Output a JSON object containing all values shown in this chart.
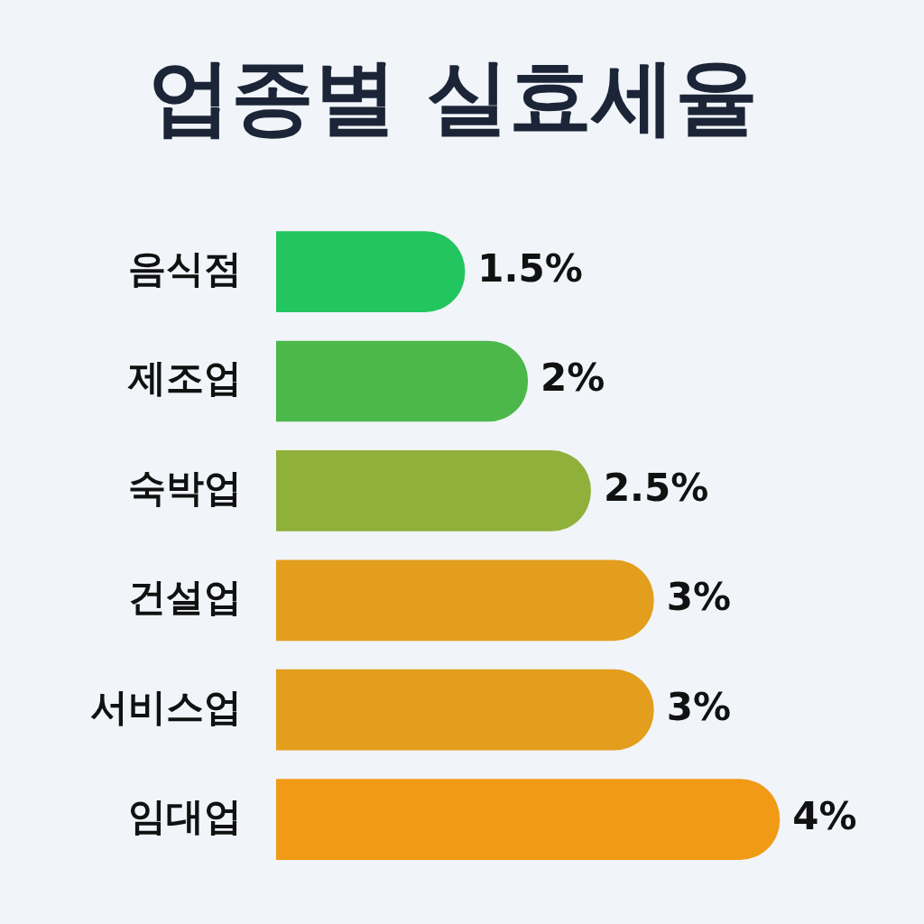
{
  "chart_data": {
    "type": "bar",
    "orientation": "horizontal",
    "title": "업종별 실효세율",
    "categories": [
      "음식점",
      "제조업",
      "숙박업",
      "건설업",
      "서비스업",
      "임대업"
    ],
    "values": [
      1.5,
      2,
      2.5,
      3,
      3,
      4
    ],
    "colors": [
      "#22c55e",
      "#4cb84a",
      "#8fb03a",
      "#e29e1c",
      "#e29e1c",
      "#f09a16"
    ],
    "value_labels": [
      "1.5%",
      "2%",
      "2.5%",
      "3%",
      "3%",
      "4%"
    ],
    "grid": false,
    "legend": false
  }
}
